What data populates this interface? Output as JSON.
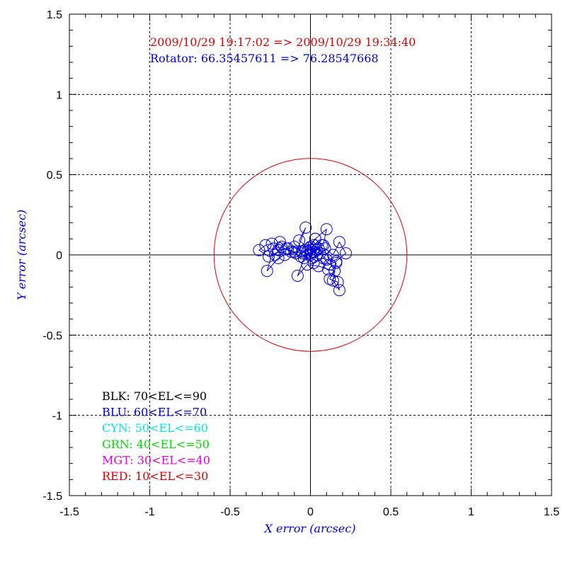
{
  "chart_data": {
    "type": "scatter",
    "xlabel": "X error (arcsec)",
    "ylabel": "Y error (arcsec)",
    "xlim": [
      -1.5,
      1.5
    ],
    "ylim": [
      -1.5,
      1.5
    ],
    "xticks": [
      "-1.5",
      "-1",
      "-0.5",
      "0",
      "0.5",
      "1",
      "1.5"
    ],
    "yticks": [
      "-1.5",
      "-1",
      "-0.5",
      "0",
      "0.5",
      "1",
      "1.5"
    ],
    "grid": true,
    "header": {
      "time_range": "2009/10/29 19:17:02 => 2009/10/29 19:34:40",
      "rotator": "Rotator: 66.35457611 => 76.28547668"
    },
    "reference_circle": {
      "radius": 0.6,
      "color": "#dd0000"
    },
    "legend": [
      {
        "label": "BLK: 70<EL<=90",
        "color": "#000000"
      },
      {
        "label": "BLU: 60<EL<=70",
        "color": "#0000dd"
      },
      {
        "label": "CYN: 50<EL<=60",
        "color": "#00e5e5"
      },
      {
        "label": "GRN: 40<EL<=50",
        "color": "#00dd00"
      },
      {
        "label": "MGT: 30<EL<=40",
        "color": "#dd00dd"
      },
      {
        "label": "RED: 10<EL<=30",
        "color": "#dd0000"
      }
    ],
    "series": [
      {
        "color": "#0000dd",
        "x": [
          0.0,
          0.02,
          0.05,
          -0.03,
          0.08,
          0.1,
          0.03,
          -0.05,
          -0.1,
          -0.15,
          -0.2,
          -0.24,
          -0.28,
          -0.32,
          -0.26,
          -0.22,
          -0.18,
          -0.12,
          -0.06,
          0.0,
          0.04,
          0.09,
          0.14,
          0.18,
          0.22,
          0.16,
          0.12,
          0.08,
          0.02,
          -0.04,
          -0.08,
          -0.02,
          0.05,
          0.11,
          0.15,
          0.12,
          0.17,
          0.18,
          0.14,
          0.16,
          0.1,
          0.06,
          0.0,
          -0.05,
          -0.1,
          -0.14,
          -0.19,
          -0.23,
          -0.27,
          -0.2,
          -0.16,
          -0.09,
          -0.03,
          -0.07,
          -0.01,
          0.03,
          0.07,
          0.04,
          0.01,
          -0.02,
          0.02,
          0.0
        ],
        "y": [
          0.05,
          0.02,
          0.04,
          0.03,
          0.06,
          0.16,
          0.1,
          0.01,
          0.02,
          0.04,
          0.03,
          0.07,
          0.06,
          0.03,
          -0.01,
          0.0,
          0.05,
          0.02,
          -0.01,
          0.0,
          0.03,
          0.04,
          0.0,
          0.08,
          0.01,
          -0.04,
          -0.06,
          -0.02,
          -0.05,
          -0.02,
          -0.13,
          -0.06,
          -0.07,
          -0.09,
          -0.1,
          -0.15,
          -0.17,
          -0.22,
          -0.16,
          -0.05,
          -0.03,
          0.01,
          0.03,
          0.02,
          0.05,
          0.04,
          0.08,
          0.04,
          -0.1,
          -0.02,
          0.0,
          0.01,
          0.17,
          0.09,
          0.04,
          0.1,
          0.06,
          0.0,
          -0.02,
          0.02,
          0.06,
          0.01
        ]
      }
    ]
  }
}
